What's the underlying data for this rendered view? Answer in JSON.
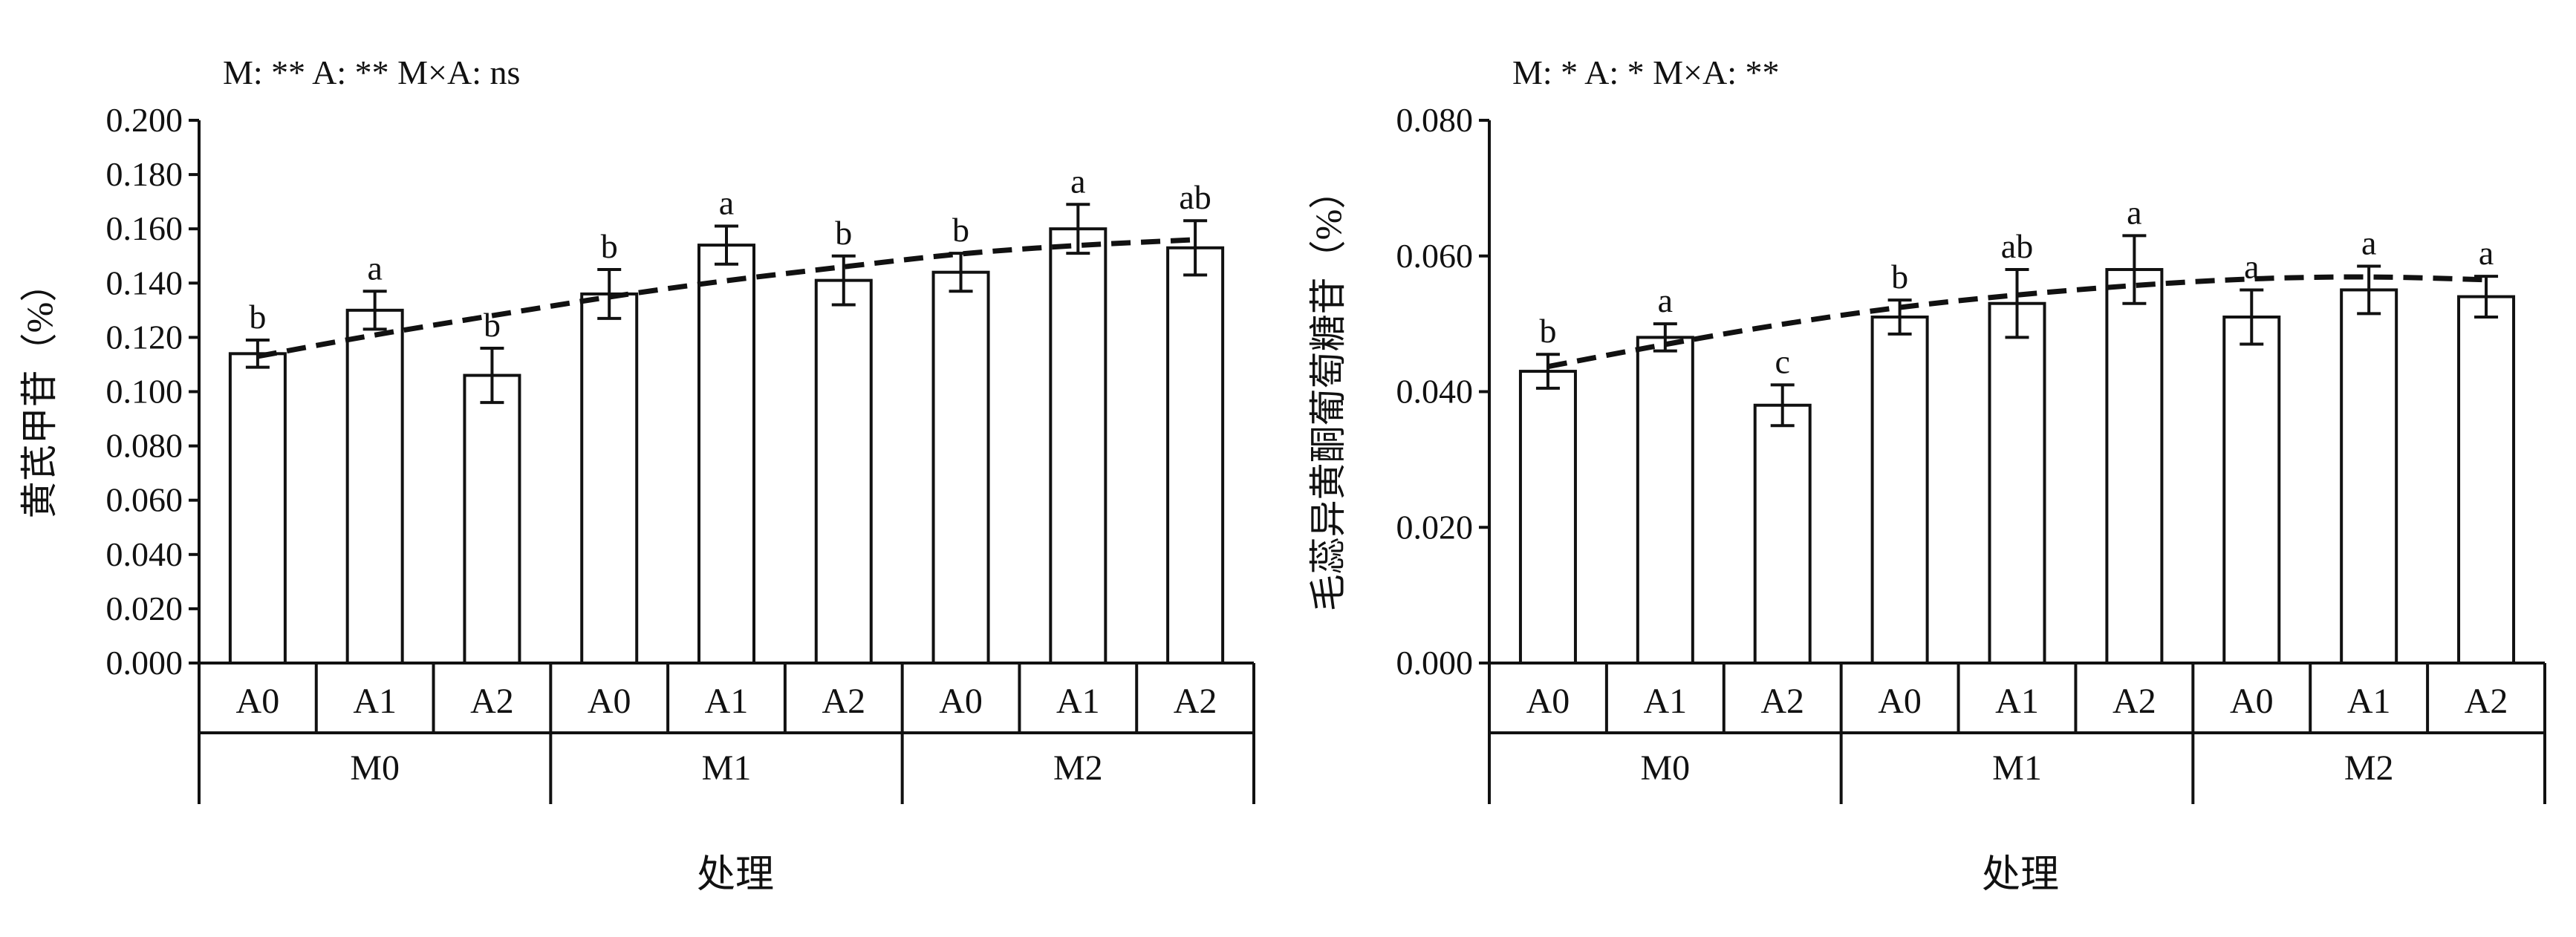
{
  "chart_data": [
    {
      "type": "bar",
      "annotation": "M: **    A: **    M×A: ns",
      "ylabel": "黄芪甲苷（%）",
      "xlabel": "处理",
      "ylim": [
        0,
        0.2
      ],
      "ytick_step": 0.02,
      "ytick_labels": [
        "0.000",
        "0.020",
        "0.040",
        "0.060",
        "0.080",
        "0.100",
        "0.120",
        "0.140",
        "0.160",
        "0.180",
        "0.200"
      ],
      "categories": [
        "A0",
        "A1",
        "A2",
        "A0",
        "A1",
        "A2",
        "A0",
        "A1",
        "A2"
      ],
      "groups": [
        "M0",
        "M1",
        "M2"
      ],
      "values": [
        0.114,
        0.13,
        0.106,
        0.136,
        0.154,
        0.141,
        0.144,
        0.16,
        0.153
      ],
      "errors": [
        0.005,
        0.007,
        0.01,
        0.009,
        0.007,
        0.009,
        0.007,
        0.009,
        0.01
      ],
      "letters": [
        "b",
        "a",
        "b",
        "b",
        "a",
        "b",
        "b",
        "a",
        "ab"
      ],
      "trend": [
        0.113,
        0.121,
        0.128,
        0.135,
        0.141,
        0.146,
        0.151,
        0.154,
        0.156
      ]
    },
    {
      "type": "bar",
      "annotation": "M: *    A: *    M×A: **",
      "ylabel": "毛蕊异黄酮葡萄糖苷（%）",
      "xlabel": "处理",
      "ylim": [
        0,
        0.08
      ],
      "ytick_step": 0.02,
      "ytick_labels": [
        "0.000",
        "0.020",
        "0.040",
        "0.060",
        "0.080"
      ],
      "categories": [
        "A0",
        "A1",
        "A2",
        "A0",
        "A1",
        "A2",
        "A0",
        "A1",
        "A2"
      ],
      "groups": [
        "M0",
        "M1",
        "M2"
      ],
      "values": [
        0.043,
        0.048,
        0.038,
        0.051,
        0.053,
        0.058,
        0.051,
        0.055,
        0.054
      ],
      "errors": [
        0.0025,
        0.002,
        0.003,
        0.0025,
        0.005,
        0.005,
        0.004,
        0.0035,
        0.003
      ],
      "letters": [
        "b",
        "a",
        "c",
        "b",
        "ab",
        "a",
        "a",
        "a",
        "a"
      ],
      "trend": [
        0.0437,
        0.047,
        0.05,
        0.0525,
        0.0543,
        0.0557,
        0.0567,
        0.057,
        0.0565
      ]
    }
  ]
}
